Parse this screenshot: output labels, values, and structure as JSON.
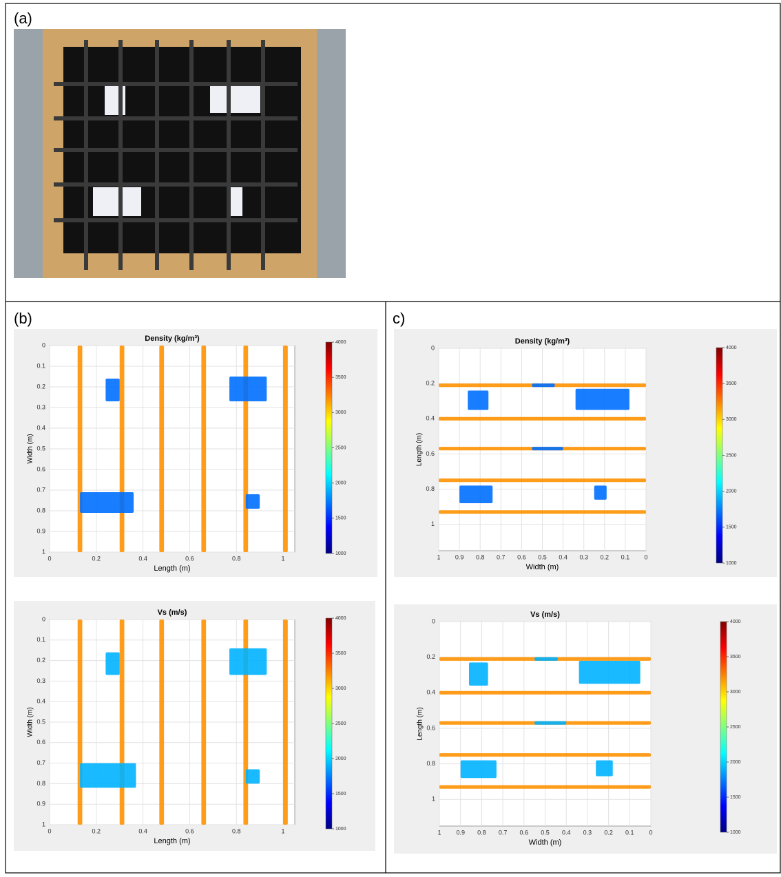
{
  "panels": {
    "a": "(a)",
    "b": "(b)",
    "c": "c)"
  },
  "chart_data": [
    {
      "type": "heatmap",
      "title": "Density (kg/m³)",
      "xlabel": "Length (m)",
      "ylabel": "Width (m)",
      "xlim": [
        0,
        1.05
      ],
      "ylim": [
        0,
        1
      ],
      "xticks": [
        0,
        0.2,
        0.4,
        0.6,
        0.8,
        1
      ],
      "yticks": [
        0,
        0.1,
        0.2,
        0.3,
        0.4,
        0.5,
        0.6,
        0.7,
        0.8,
        0.9,
        1
      ],
      "clim": [
        1000,
        4000
      ],
      "cticks": [
        1000,
        1500,
        2000,
        2500,
        3000,
        3500,
        4000
      ],
      "colormap": "jet",
      "cells": [
        {
          "x": [
            0.12,
            0.14
          ],
          "y": [
            0,
            1
          ],
          "value": 3200
        },
        {
          "x": [
            0.3,
            0.32
          ],
          "y": [
            0,
            1
          ],
          "value": 3200
        },
        {
          "x": [
            0.47,
            0.49
          ],
          "y": [
            0,
            1
          ],
          "value": 3200
        },
        {
          "x": [
            0.65,
            0.67
          ],
          "y": [
            0,
            1
          ],
          "value": 3200
        },
        {
          "x": [
            0.83,
            0.85
          ],
          "y": [
            0,
            1
          ],
          "value": 3200
        },
        {
          "x": [
            1,
            1.02
          ],
          "y": [
            0,
            1
          ],
          "value": 3200
        },
        {
          "x": [
            0.24,
            0.3
          ],
          "y": [
            0.16,
            0.27
          ],
          "value": 1700
        },
        {
          "x": [
            0.77,
            0.93
          ],
          "y": [
            0.15,
            0.27
          ],
          "value": 1700
        },
        {
          "x": [
            0.13,
            0.36
          ],
          "y": [
            0.71,
            0.81
          ],
          "value": 1700
        },
        {
          "x": [
            0.84,
            0.9
          ],
          "y": [
            0.72,
            0.79
          ],
          "value": 1700
        }
      ]
    },
    {
      "type": "heatmap",
      "title": "Vs (m/s)",
      "xlabel": "Length (m)",
      "ylabel": "Width (m)",
      "xlim": [
        0,
        1.05
      ],
      "ylim": [
        0,
        1
      ],
      "xticks": [
        0,
        0.2,
        0.4,
        0.6,
        0.8,
        1
      ],
      "yticks": [
        0,
        0.1,
        0.2,
        0.3,
        0.4,
        0.5,
        0.6,
        0.7,
        0.8,
        0.9,
        1
      ],
      "clim": [
        1000,
        4000
      ],
      "cticks": [
        1000,
        1500,
        2000,
        2500,
        3000,
        3500,
        4000
      ],
      "colormap": "jet",
      "cells": [
        {
          "x": [
            0.12,
            0.14
          ],
          "y": [
            0,
            1
          ],
          "value": 3200
        },
        {
          "x": [
            0.3,
            0.32
          ],
          "y": [
            0,
            1
          ],
          "value": 3200
        },
        {
          "x": [
            0.47,
            0.49
          ],
          "y": [
            0,
            1
          ],
          "value": 3200
        },
        {
          "x": [
            0.65,
            0.67
          ],
          "y": [
            0,
            1
          ],
          "value": 3200
        },
        {
          "x": [
            0.83,
            0.85
          ],
          "y": [
            0,
            1
          ],
          "value": 3200
        },
        {
          "x": [
            1,
            1.02
          ],
          "y": [
            0,
            1
          ],
          "value": 3200
        },
        {
          "x": [
            0.24,
            0.3
          ],
          "y": [
            0.16,
            0.27
          ],
          "value": 1900
        },
        {
          "x": [
            0.77,
            0.93
          ],
          "y": [
            0.14,
            0.27
          ],
          "value": 1900
        },
        {
          "x": [
            0.13,
            0.37
          ],
          "y": [
            0.7,
            0.82
          ],
          "value": 1900
        },
        {
          "x": [
            0.84,
            0.9
          ],
          "y": [
            0.73,
            0.8
          ],
          "value": 1900
        }
      ]
    },
    {
      "type": "heatmap",
      "title": "Density (kg/m³)",
      "xlabel": "Width (m)",
      "ylabel": "Length (m)",
      "xlim": [
        1,
        0
      ],
      "ylim": [
        0,
        1.15
      ],
      "xticks": [
        1,
        0.9,
        0.8,
        0.7,
        0.6,
        0.5,
        0.4,
        0.3,
        0.2,
        0.1,
        0
      ],
      "yticks": [
        0,
        0.2,
        0.4,
        0.6,
        0.8,
        1
      ],
      "clim": [
        1000,
        4000
      ],
      "cticks": [
        1000,
        1500,
        2000,
        2500,
        3000,
        3500,
        4000
      ],
      "colormap": "jet",
      "cells": [
        {
          "x": [
            1,
            0
          ],
          "y": [
            0.2,
            0.22
          ],
          "value": 3200
        },
        {
          "x": [
            1,
            0
          ],
          "y": [
            0.39,
            0.41
          ],
          "value": 3200
        },
        {
          "x": [
            1,
            0
          ],
          "y": [
            0.56,
            0.58
          ],
          "value": 3200
        },
        {
          "x": [
            1,
            0
          ],
          "y": [
            0.74,
            0.76
          ],
          "value": 3200
        },
        {
          "x": [
            1,
            0
          ],
          "y": [
            0.92,
            0.94
          ],
          "value": 3200
        },
        {
          "x": [
            0.86,
            0.76
          ],
          "y": [
            0.24,
            0.35
          ],
          "value": 1700
        },
        {
          "x": [
            0.34,
            0.08
          ],
          "y": [
            0.23,
            0.35
          ],
          "value": 1700
        },
        {
          "x": [
            0.9,
            0.74
          ],
          "y": [
            0.78,
            0.88
          ],
          "value": 1700
        },
        {
          "x": [
            0.25,
            0.19
          ],
          "y": [
            0.78,
            0.86
          ],
          "value": 1700
        },
        {
          "x": [
            0.55,
            0.44
          ],
          "y": [
            0.2,
            0.22
          ],
          "value": 1700
        },
        {
          "x": [
            0.55,
            0.4
          ],
          "y": [
            0.56,
            0.58
          ],
          "value": 1700
        }
      ]
    },
    {
      "type": "heatmap",
      "title": "Vs (m/s)",
      "xlabel": "Width (m)",
      "ylabel": "Length (m)",
      "xlim": [
        1,
        0
      ],
      "ylim": [
        0,
        1.15
      ],
      "xticks": [
        1,
        0.9,
        0.8,
        0.7,
        0.6,
        0.5,
        0.4,
        0.3,
        0.2,
        0.1,
        0
      ],
      "yticks": [
        0,
        0.2,
        0.4,
        0.6,
        0.8,
        1
      ],
      "clim": [
        1000,
        4000
      ],
      "cticks": [
        1000,
        1500,
        2000,
        2500,
        3000,
        3500,
        4000
      ],
      "colormap": "jet",
      "cells": [
        {
          "x": [
            1,
            0
          ],
          "y": [
            0.2,
            0.22
          ],
          "value": 3200
        },
        {
          "x": [
            1,
            0
          ],
          "y": [
            0.39,
            0.41
          ],
          "value": 3200
        },
        {
          "x": [
            1,
            0
          ],
          "y": [
            0.56,
            0.58
          ],
          "value": 3200
        },
        {
          "x": [
            1,
            0
          ],
          "y": [
            0.74,
            0.76
          ],
          "value": 3200
        },
        {
          "x": [
            1,
            0
          ],
          "y": [
            0.92,
            0.94
          ],
          "value": 3200
        },
        {
          "x": [
            0.86,
            0.77
          ],
          "y": [
            0.23,
            0.36
          ],
          "value": 1900
        },
        {
          "x": [
            0.34,
            0.05
          ],
          "y": [
            0.22,
            0.35
          ],
          "value": 1900
        },
        {
          "x": [
            0.9,
            0.73
          ],
          "y": [
            0.78,
            0.88
          ],
          "value": 1900
        },
        {
          "x": [
            0.26,
            0.18
          ],
          "y": [
            0.78,
            0.87
          ],
          "value": 1900
        },
        {
          "x": [
            0.55,
            0.44
          ],
          "y": [
            0.2,
            0.22
          ],
          "value": 1900
        },
        {
          "x": [
            0.55,
            0.4
          ],
          "y": [
            0.56,
            0.58
          ],
          "value": 1900
        }
      ]
    }
  ]
}
